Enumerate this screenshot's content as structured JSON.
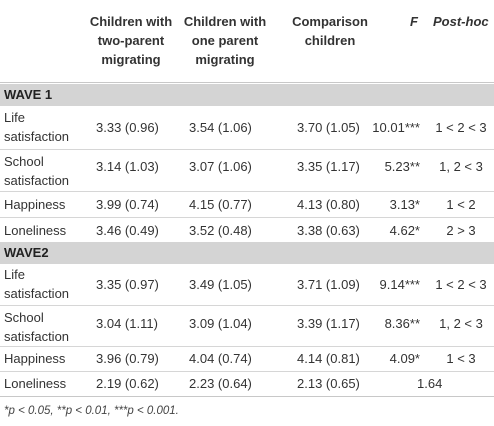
{
  "header": {
    "col1": [
      "Children with",
      "two-parent",
      "migrating"
    ],
    "col2": [
      "Children with",
      "one parent",
      "migrating"
    ],
    "col3": [
      "Comparison",
      "children"
    ],
    "col4": "F",
    "col5": "Post-hoc"
  },
  "wave1": {
    "label": "WAVE 1",
    "rows": [
      {
        "label": [
          "Life",
          "satisfaction"
        ],
        "two": "3.33 (0.96)",
        "one": "3.54 (1.06)",
        "comp": "3.70 (1.05)",
        "f": "10.01***",
        "posthoc": "1 < 2 < 3"
      },
      {
        "label": [
          "School",
          "satisfaction"
        ],
        "two": "3.14 (1.03)",
        "one": "3.07 (1.06)",
        "comp": "3.35 (1.17)",
        "f": "5.23**",
        "posthoc": "1, 2 < 3"
      },
      {
        "label": [
          "Happiness"
        ],
        "two": "3.99 (0.74)",
        "one": "4.15 (0.77)",
        "comp": "4.13 (0.80)",
        "f": "3.13*",
        "posthoc": "1 < 2"
      },
      {
        "label": [
          "Loneliness"
        ],
        "two": "3.46 (0.49)",
        "one": "3.52 (0.48)",
        "comp": "3.38 (0.63)",
        "f": "4.62*",
        "posthoc": "2 > 3"
      }
    ]
  },
  "wave2": {
    "label": "WAVE2",
    "rows": [
      {
        "label": [
          "Life",
          "satisfaction"
        ],
        "two": "3.35 (0.97)",
        "one": "3.49 (1.05)",
        "comp": "3.71 (1.09)",
        "f": "9.14***",
        "posthoc": "1 < 2 < 3"
      },
      {
        "label": [
          "School",
          "satisfaction"
        ],
        "two": "3.04 (1.11)",
        "one": "3.09 (1.04)",
        "comp": "3.39 (1.17)",
        "f": "8.36**",
        "posthoc": "1, 2 < 3"
      },
      {
        "label": [
          "Happiness"
        ],
        "two": "3.96 (0.79)",
        "one": "4.04 (0.74)",
        "comp": "4.14 (0.81)",
        "f": "4.09*",
        "posthoc": "1 < 3"
      },
      {
        "label": [
          "Loneliness"
        ],
        "two": "2.19 (0.62)",
        "one": "2.23 (0.64)",
        "comp": "2.13 (0.65)",
        "f": "1.64",
        "posthoc": ""
      }
    ]
  },
  "footnote": "*p < 0.05, **p < 0.01, ***p < 0.001."
}
